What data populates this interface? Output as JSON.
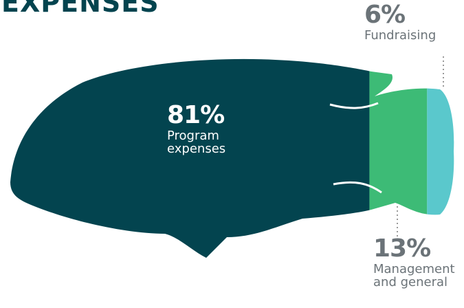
{
  "chart_data": {
    "type": "fish",
    "title": "EXPENSES",
    "categories": [
      "Program expenses",
      "Management and general",
      "Fundraising"
    ],
    "values": [
      81,
      13,
      6
    ],
    "value_labels": [
      "81%",
      "13%",
      "6%"
    ],
    "colors": [
      "#03444f",
      "#3dbb76",
      "#5ac8cc"
    ]
  }
}
